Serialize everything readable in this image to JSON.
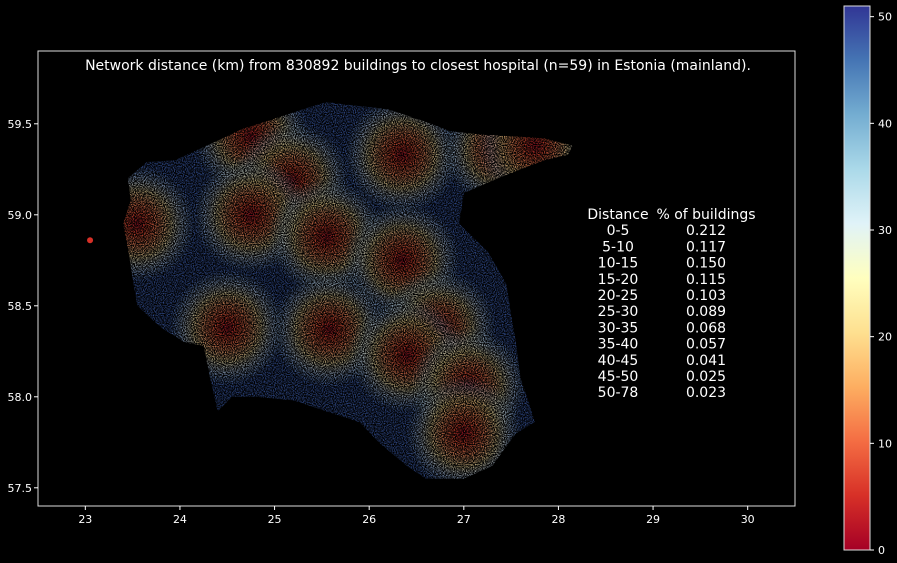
{
  "chart_data": {
    "type": "heatmap",
    "title": "Network distance (km) from 830892 buildings to closest hospital (n=59) in Estonia (mainland).",
    "xlabel": "",
    "ylabel": "",
    "xlim": [
      22.5,
      30.5
    ],
    "ylim": [
      57.4,
      59.9
    ],
    "x_ticks": [
      23,
      24,
      25,
      26,
      27,
      28,
      29,
      30
    ],
    "y_ticks": [
      57.5,
      58.0,
      58.5,
      59.0,
      59.5
    ],
    "y_tick_labels": [
      "57.5",
      "58.0",
      "58.5",
      "59.0",
      "59.5"
    ],
    "grid": false,
    "colorbar": {
      "vmin": 0,
      "vmax": 51,
      "ticks": [
        0,
        10,
        20,
        30,
        40,
        50
      ],
      "colormap": "RdYlBu",
      "colors": [
        "#a50026",
        "#d73027",
        "#f46d43",
        "#fdae61",
        "#fee090",
        "#ffffbf",
        "#e0f3f8",
        "#abd9e9",
        "#74add1",
        "#4575b4",
        "#313695"
      ]
    },
    "hospitals": [
      {
        "lon": 24.75,
        "lat": 59.43
      },
      {
        "lon": 26.35,
        "lat": 59.33
      },
      {
        "lon": 27.38,
        "lat": 59.36
      },
      {
        "lon": 27.75,
        "lat": 59.38
      },
      {
        "lon": 25.18,
        "lat": 59.19
      },
      {
        "lon": 24.75,
        "lat": 59.0
      },
      {
        "lon": 25.55,
        "lat": 58.88
      },
      {
        "lon": 26.35,
        "lat": 58.75
      },
      {
        "lon": 25.58,
        "lat": 58.37
      },
      {
        "lon": 26.73,
        "lat": 58.38
      },
      {
        "lon": 26.4,
        "lat": 58.23
      },
      {
        "lon": 27.05,
        "lat": 58.06
      },
      {
        "lon": 27.0,
        "lat": 57.8
      },
      {
        "lon": 24.5,
        "lat": 58.38
      },
      {
        "lon": 23.55,
        "lat": 58.95
      }
    ],
    "table": {
      "header": [
        "Distance",
        "% of buildings"
      ],
      "rows": [
        [
          "0-5",
          "0.212"
        ],
        [
          "5-10",
          "0.117"
        ],
        [
          "10-15",
          "0.150"
        ],
        [
          "15-20",
          "0.115"
        ],
        [
          "20-25",
          "0.103"
        ],
        [
          "25-30",
          "0.089"
        ],
        [
          "30-35",
          "0.068"
        ],
        [
          "35-40",
          "0.057"
        ],
        [
          "40-45",
          "0.041"
        ],
        [
          "45-50",
          "0.025"
        ],
        [
          "50-78",
          "0.023"
        ]
      ]
    }
  }
}
